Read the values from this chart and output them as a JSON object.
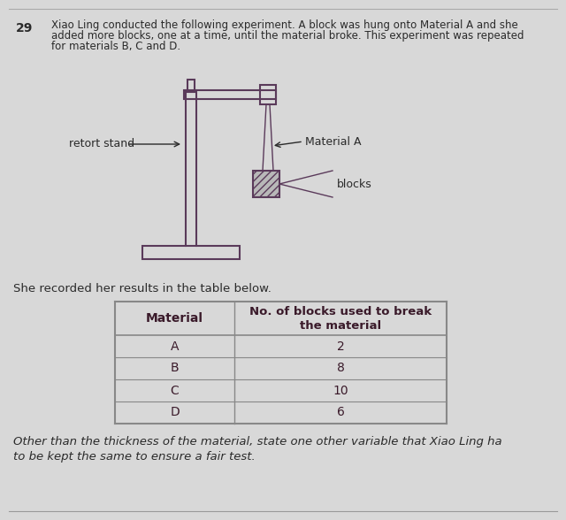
{
  "background_color": "#d8d8d8",
  "question_number": "29",
  "question_text_line1": "Xiao Ling conducted the following experiment. A block was hung onto Material A and she",
  "question_text_line2": "added more blocks, one at a time, until the material broke. This experiment was repeated",
  "question_text_line3": "for materials B, C and D.",
  "retort_stand_label": "retort stand",
  "material_a_label": "Material A",
  "blocks_label": "blocks",
  "results_text": "She recorded her results in the table below.",
  "table_header_col1": "Material",
  "table_header_col2_line1": "No. of blocks used to break",
  "table_header_col2_line2": "the material",
  "table_data": [
    [
      "A",
      "2"
    ],
    [
      "B",
      "8"
    ],
    [
      "C",
      "10"
    ],
    [
      "D",
      "6"
    ]
  ],
  "bottom_text_line1": "Other than the thickness of the material, state one other variable that Xiao Ling ha",
  "bottom_text_line2": "to be kept the same to ensure a fair test.",
  "stand_color": "#5a3a5a",
  "text_color": "#2a2a2a",
  "table_line_color": "#888888",
  "table_text_color": "#3a1a2a"
}
